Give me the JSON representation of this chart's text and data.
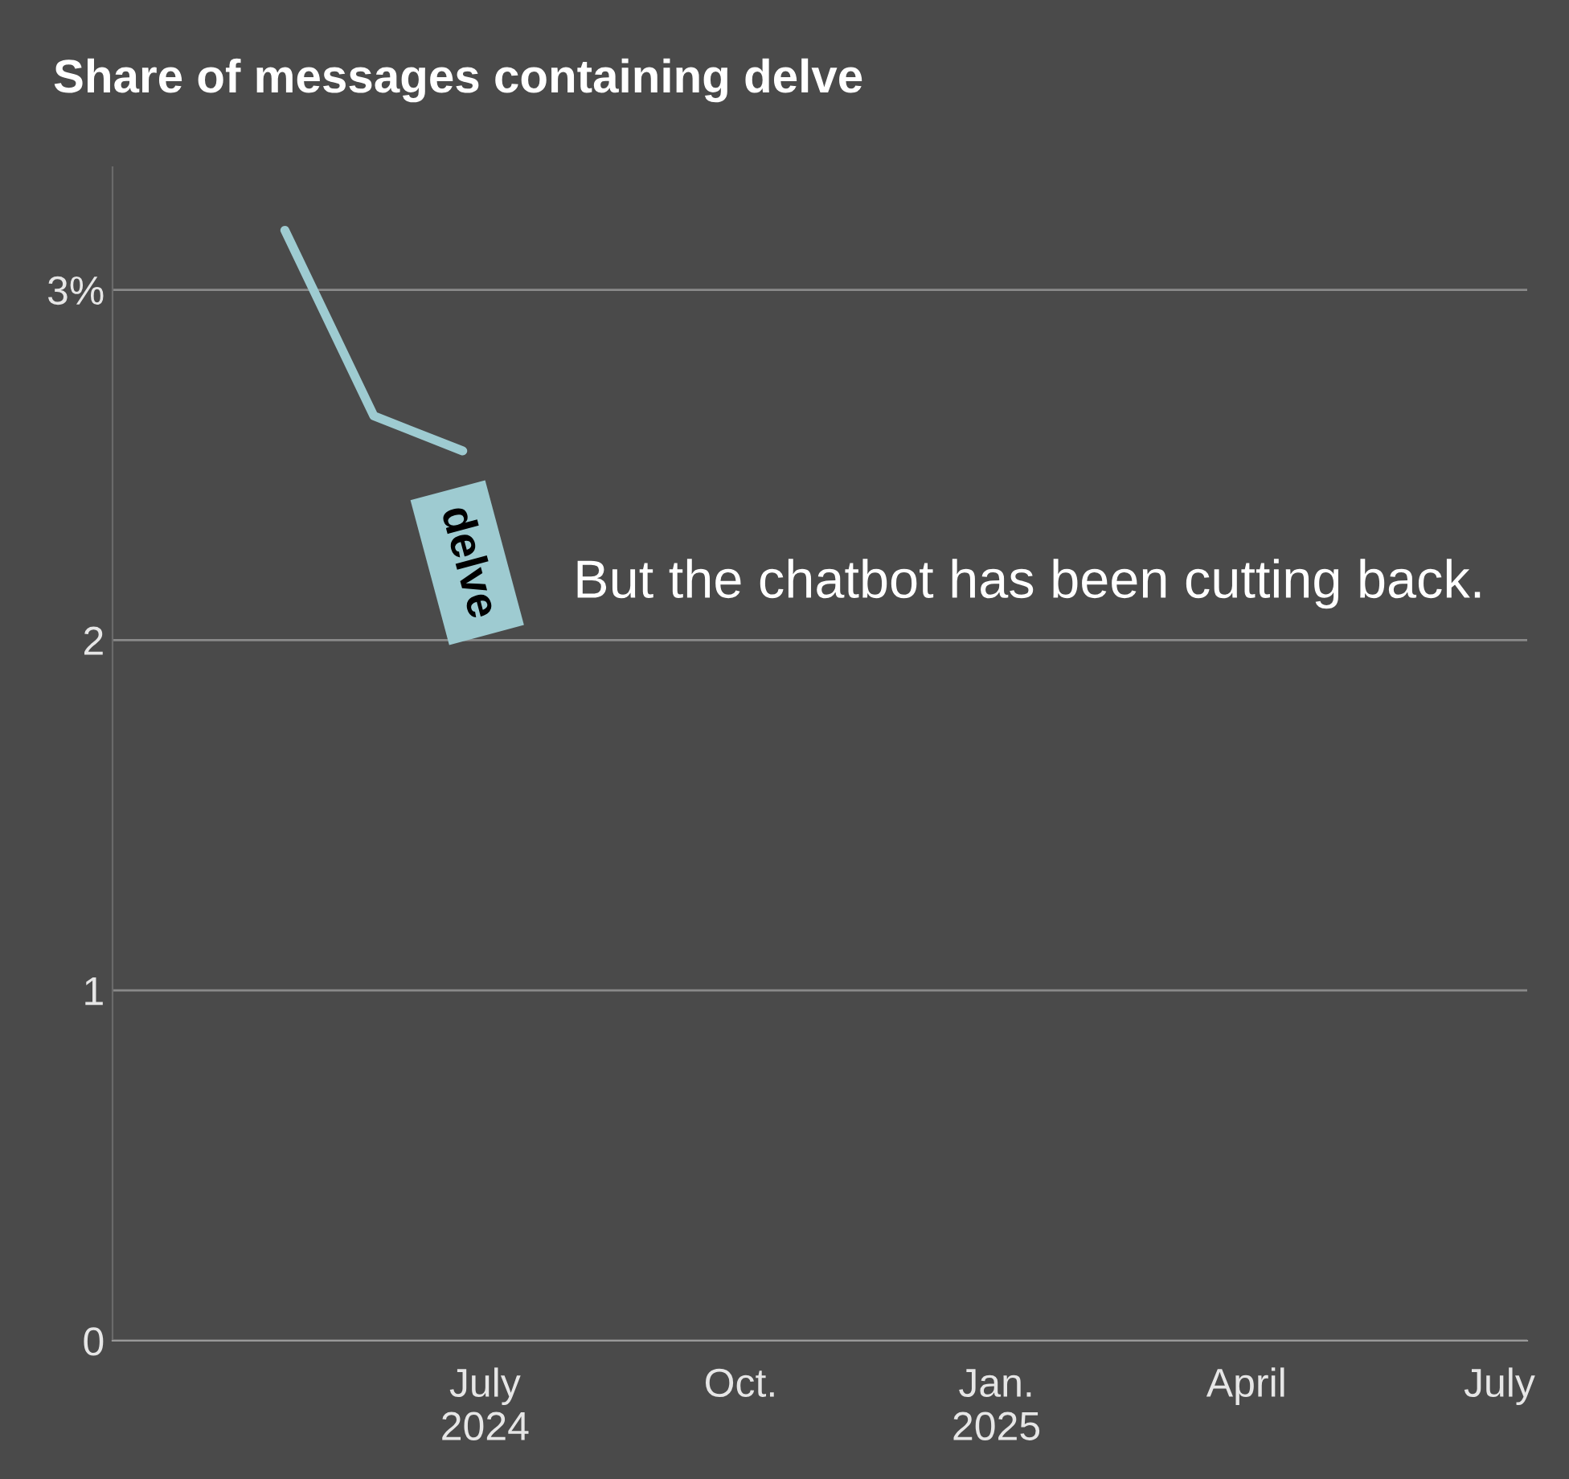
{
  "chart_data": {
    "type": "line",
    "title": "Share of messages containing delve",
    "x": [
      "2024-04-20",
      "2024-05-22",
      "2024-06-23"
    ],
    "series": [
      {
        "name": "delve",
        "color": "#9ecbd1",
        "values": [
          3.17,
          2.64,
          2.54
        ]
      }
    ],
    "xlim": [
      "2024-02-18",
      "2025-07-11"
    ],
    "xticks": [
      {
        "value": "2024-07-01",
        "label": "July\n2024"
      },
      {
        "value": "2024-10-01",
        "label": "Oct."
      },
      {
        "value": "2025-01-01",
        "label": "Jan.\n2025"
      },
      {
        "value": "2025-04-01",
        "label": "April"
      },
      {
        "value": "2025-07-01",
        "label": "July"
      }
    ],
    "ylim": [
      0,
      3.35
    ],
    "yticks": [
      0,
      1,
      2,
      {
        "value": 3,
        "label": "3%"
      }
    ],
    "grid": "y",
    "legend": false,
    "marker": "none",
    "line_style": "solid",
    "annotations": [
      "But the chatbot has been cutting back."
    ]
  }
}
